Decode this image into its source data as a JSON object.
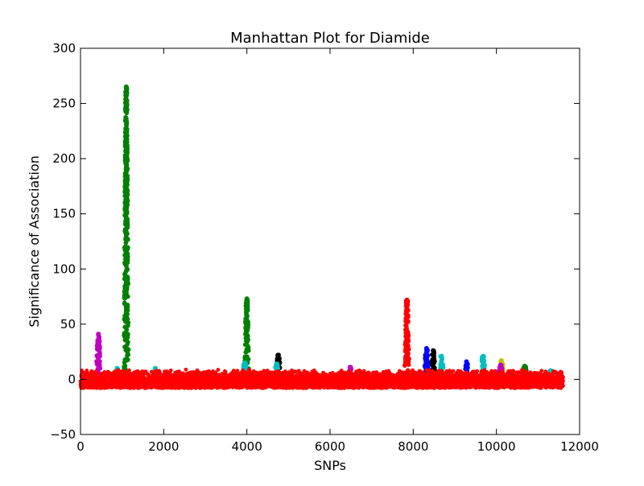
{
  "chart_data": {
    "type": "scatter",
    "title": "Manhattan Plot for Diamide",
    "xlabel": "SNPs",
    "ylabel": "Significance of Association",
    "xlim": [
      0,
      12000
    ],
    "ylim": [
      -50,
      300
    ],
    "xticks": [
      0,
      2000,
      4000,
      6000,
      8000,
      10000,
      12000
    ],
    "yticks": [
      -50,
      0,
      50,
      100,
      150,
      200,
      250,
      300
    ],
    "xtick_labels": [
      "0",
      "2000",
      "4000",
      "6000",
      "8000",
      "10000",
      "12000"
    ],
    "ytick_labels": [
      "−50",
      "0",
      "50",
      "100",
      "150",
      "200",
      "250",
      "300"
    ],
    "grid": false,
    "baseline_series": [
      {
        "color": "#ff0000",
        "x_range": [
          0,
          11600
        ],
        "y_range": [
          -8,
          9
        ]
      }
    ],
    "peaks": [
      {
        "color": "#bf00bf",
        "x": 430,
        "y_max": 41
      },
      {
        "color": "#00bfbf",
        "x": 880,
        "y_max": 10
      },
      {
        "color": "#008000",
        "x": 1100,
        "y_max": 265
      },
      {
        "color": "#00bfbf",
        "x": 1800,
        "y_max": 10
      },
      {
        "color": "#008000",
        "x": 4000,
        "y_max": 73
      },
      {
        "color": "#00bfbf",
        "x": 3950,
        "y_max": 15
      },
      {
        "color": "#000000",
        "x": 4760,
        "y_max": 22
      },
      {
        "color": "#00bfbf",
        "x": 4720,
        "y_max": 14
      },
      {
        "color": "#bf00bf",
        "x": 6480,
        "y_max": 11
      },
      {
        "color": "#ff0000",
        "x": 7850,
        "y_max": 72
      },
      {
        "color": "#0000ff",
        "x": 8320,
        "y_max": 28
      },
      {
        "color": "#000000",
        "x": 8480,
        "y_max": 26
      },
      {
        "color": "#00bfbf",
        "x": 8680,
        "y_max": 21
      },
      {
        "color": "#0000ff",
        "x": 9280,
        "y_max": 16
      },
      {
        "color": "#00bfbf",
        "x": 9680,
        "y_max": 21
      },
      {
        "color": "#bfbf00",
        "x": 10120,
        "y_max": 17
      },
      {
        "color": "#bf00bf",
        "x": 10100,
        "y_max": 13
      },
      {
        "color": "#008000",
        "x": 10680,
        "y_max": 12
      },
      {
        "color": "#00bfbf",
        "x": 11300,
        "y_max": 8
      }
    ],
    "peak_series": [
      {
        "color": "#008000",
        "points": [
          [
            1100,
            40
          ],
          [
            1100,
            57
          ],
          [
            1100,
            60
          ],
          [
            1100,
            63
          ],
          [
            1100,
            65
          ],
          [
            1100,
            87
          ],
          [
            1100,
            90
          ],
          [
            1100,
            103
          ],
          [
            1100,
            107
          ],
          [
            1100,
            110
          ],
          [
            1100,
            113
          ],
          [
            1100,
            116
          ],
          [
            1100,
            133
          ],
          [
            1100,
            145
          ],
          [
            1100,
            150
          ],
          [
            1100,
            155
          ],
          [
            1100,
            161
          ],
          [
            1100,
            163
          ],
          [
            1100,
            168
          ],
          [
            1100,
            180
          ],
          [
            1100,
            185
          ],
          [
            1100,
            188
          ],
          [
            1100,
            199
          ],
          [
            1100,
            265
          ]
        ]
      }
    ]
  }
}
